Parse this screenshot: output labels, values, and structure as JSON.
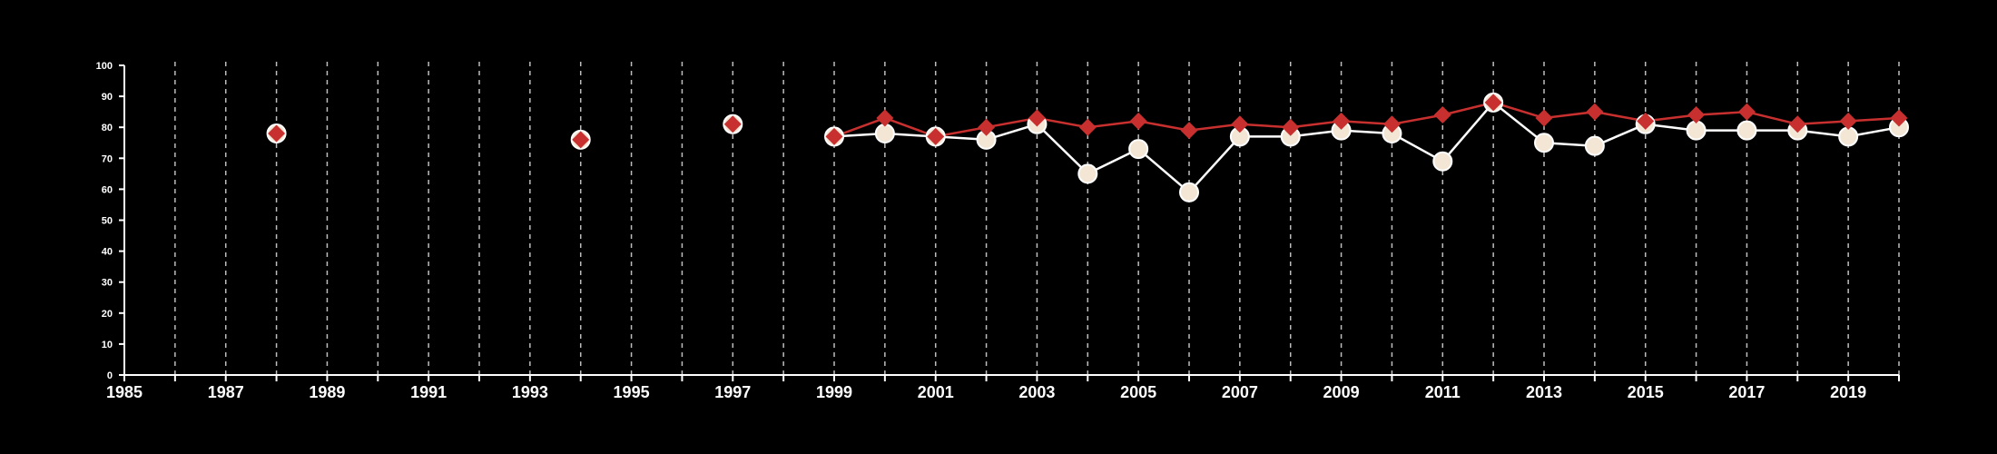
{
  "chart_data": {
    "type": "line",
    "title": "",
    "xlabel": "",
    "ylabel": "",
    "xlim": [
      1985,
      2020
    ],
    "ylim": [
      0,
      100
    ],
    "x_ticks": [
      1985,
      1987,
      1989,
      1991,
      1993,
      1995,
      1997,
      1999,
      2001,
      2003,
      2005,
      2007,
      2009,
      2011,
      2013,
      2015,
      2017,
      2019
    ],
    "x_tick_labels": [
      "1985",
      "1987",
      "1989",
      "1991",
      "1993",
      "1995",
      "1997",
      "1999",
      "2001",
      "2003",
      "2005",
      "2007",
      "2009",
      "2011",
      "2013",
      "2015",
      "2017",
      "2019"
    ],
    "y_ticks": [
      0,
      10,
      20,
      30,
      40,
      50,
      60,
      70,
      80,
      90,
      100
    ],
    "y_tick_labels": [
      "0",
      "10",
      "20",
      "30",
      "40",
      "50",
      "60",
      "70",
      "80",
      "90",
      "100"
    ],
    "grid": {
      "vertical": true,
      "horizontal": false,
      "style": "dashed"
    },
    "legend": "none",
    "series": [
      {
        "marker": "circle",
        "color": "#f4e6d4",
        "line_color": "#ffffff",
        "points": [
          [
            1988,
            78
          ],
          [
            1994,
            76
          ],
          [
            1997,
            81
          ],
          [
            1999,
            77
          ],
          [
            2000,
            78
          ],
          [
            2001,
            77
          ],
          [
            2002,
            76
          ],
          [
            2003,
            81
          ],
          [
            2004,
            65
          ],
          [
            2005,
            73
          ],
          [
            2006,
            59
          ],
          [
            2007,
            77
          ],
          [
            2008,
            77
          ],
          [
            2009,
            79
          ],
          [
            2010,
            78
          ],
          [
            2011,
            69
          ],
          [
            2012,
            88
          ],
          [
            2013,
            75
          ],
          [
            2014,
            74
          ],
          [
            2015,
            81
          ],
          [
            2016,
            79
          ],
          [
            2017,
            79
          ],
          [
            2018,
            79
          ],
          [
            2019,
            77
          ],
          [
            2020,
            80
          ]
        ]
      },
      {
        "marker": "diamond",
        "color": "#c8302f",
        "line_color": "#c8302f",
        "points": [
          [
            1988,
            78
          ],
          [
            1994,
            76
          ],
          [
            1997,
            81
          ],
          [
            1999,
            77
          ],
          [
            2000,
            83
          ],
          [
            2001,
            77
          ],
          [
            2002,
            80
          ],
          [
            2003,
            83
          ],
          [
            2004,
            80
          ],
          [
            2005,
            82
          ],
          [
            2006,
            79
          ],
          [
            2007,
            81
          ],
          [
            2008,
            80
          ],
          [
            2009,
            82
          ],
          [
            2010,
            81
          ],
          [
            2011,
            84
          ],
          [
            2012,
            88
          ],
          [
            2013,
            83
          ],
          [
            2014,
            85
          ],
          [
            2015,
            82
          ],
          [
            2016,
            84
          ],
          [
            2017,
            85
          ],
          [
            2018,
            81
          ],
          [
            2019,
            82
          ],
          [
            2020,
            83
          ]
        ]
      }
    ]
  }
}
